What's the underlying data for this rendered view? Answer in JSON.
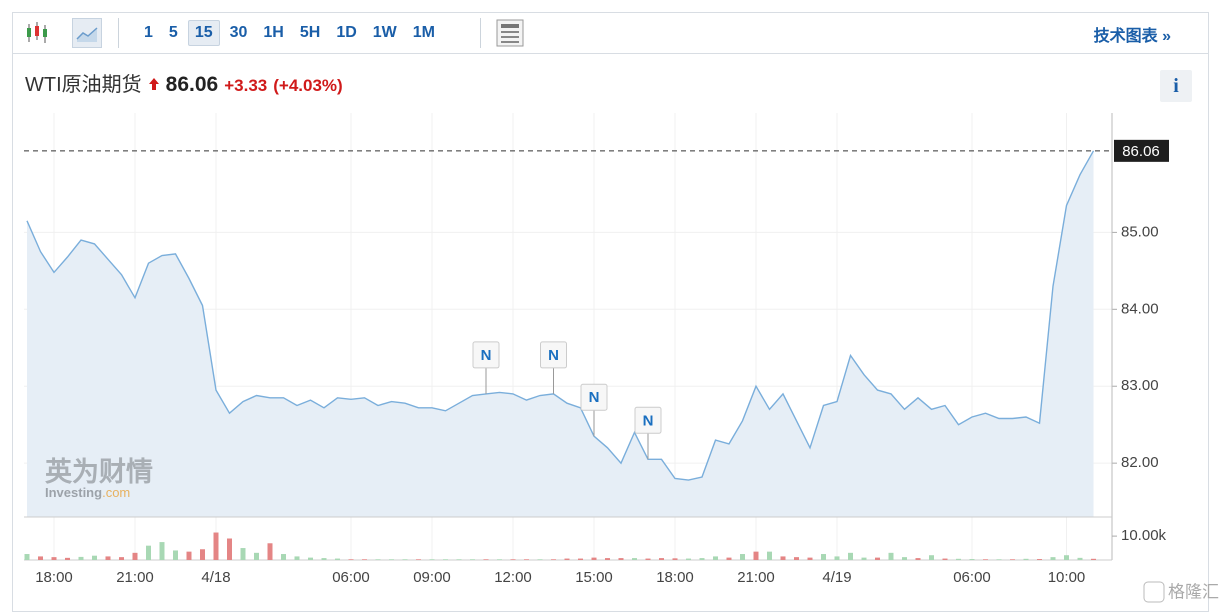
{
  "toolbar": {
    "intervals": [
      "1",
      "5",
      "15",
      "30",
      "1H",
      "5H",
      "1D",
      "1W",
      "1M"
    ],
    "tech_chart": "技术图表 »"
  },
  "header": {
    "name": "WTI原油期货",
    "price": "86.06",
    "change": "+3.33",
    "change_pct": "(+4.03%)",
    "info": "i"
  },
  "watermark": {
    "brand_cn": "英为财情",
    "brand_en": "Investing",
    "brand_suffix": ".com",
    "corner": "格隆汇"
  },
  "chart_data": {
    "type": "line",
    "categories": [
      null,
      null,
      "18:00",
      null,
      null,
      null,
      null,
      null,
      "21:00",
      null,
      null,
      null,
      null,
      null,
      "4/18",
      null,
      null,
      null,
      null,
      null,
      null,
      null,
      null,
      null,
      "06:00",
      null,
      null,
      null,
      null,
      null,
      "09:00",
      null,
      null,
      null,
      null,
      null,
      "12:00",
      null,
      null,
      null,
      null,
      null,
      "15:00",
      null,
      null,
      null,
      null,
      null,
      "18:00",
      null,
      null,
      null,
      null,
      null,
      "21:00",
      null,
      null,
      null,
      null,
      null,
      "4/19",
      null,
      null,
      null,
      null,
      null,
      null,
      null,
      null,
      null,
      "06:00",
      null,
      null,
      null,
      null,
      null,
      null,
      "10:00",
      null,
      null
    ],
    "series": [
      {
        "color": "#7aaedb",
        "fill": "#e6eef6",
        "values": [
          85.15,
          84.75,
          84.48,
          84.68,
          84.9,
          84.85,
          84.65,
          84.45,
          84.15,
          84.6,
          84.7,
          84.72,
          84.4,
          84.05,
          82.95,
          82.65,
          82.8,
          82.88,
          82.85,
          82.85,
          82.75,
          82.82,
          82.72,
          82.85,
          82.83,
          82.85,
          82.75,
          82.8,
          82.78,
          82.72,
          82.72,
          82.68,
          82.78,
          82.88,
          82.9,
          82.92,
          82.9,
          82.82,
          82.88,
          82.9,
          82.78,
          82.72,
          82.35,
          82.2,
          82.0,
          82.4,
          82.05,
          82.05,
          81.8,
          81.78,
          81.82,
          82.3,
          82.25,
          82.55,
          83.0,
          82.7,
          82.9,
          82.55,
          82.2,
          82.75,
          82.8,
          83.4,
          83.15,
          82.95,
          82.9,
          82.7,
          82.85,
          82.7,
          82.75,
          82.5,
          82.6,
          82.65,
          82.58,
          82.58,
          82.6,
          82.52,
          84.3,
          85.35,
          85.75,
          86.06
        ]
      }
    ],
    "ylim": [
      81.3,
      86.5
    ],
    "yticks": [
      {
        "value": 82,
        "label": "82.00"
      },
      {
        "value": 83,
        "label": "83.00"
      },
      {
        "value": 84,
        "label": "84.00"
      },
      {
        "value": 85,
        "label": "85.00"
      }
    ],
    "grid": true,
    "annotations": [
      {
        "text": "N",
        "at": 34
      },
      {
        "text": "N",
        "at": 39
      },
      {
        "text": "N",
        "at": 42
      },
      {
        "text": "N",
        "at": 46
      }
    ],
    "volume": {
      "ylim": [
        0,
        18000
      ],
      "yticks": [
        {
          "value": 10000,
          "label": "10.00k"
        }
      ],
      "values": [
        2500,
        1500,
        1200,
        900,
        1300,
        1800,
        1500,
        1200,
        3000,
        6000,
        7500,
        4000,
        3500,
        4500,
        11500,
        9000,
        5000,
        3000,
        7000,
        2500,
        1500,
        1000,
        800,
        600,
        300,
        300,
        300,
        300,
        300,
        300,
        300,
        300,
        300,
        300,
        300,
        300,
        300,
        300,
        300,
        300,
        600,
        600,
        1000,
        800,
        800,
        800,
        600,
        800,
        700,
        600,
        800,
        1500,
        1000,
        2500,
        3500,
        3500,
        1500,
        1200,
        1000,
        2500,
        1500,
        3000,
        1000,
        1000,
        3000,
        1200,
        800,
        2000,
        600,
        500,
        400,
        300,
        300,
        300,
        500,
        400,
        1200,
        2000,
        900,
        500
      ],
      "colors": [
        "#a8d8b4",
        "#e48585",
        "#e48585",
        "#e48585",
        "#a8d8b4",
        "#a8d8b4",
        "#e48585",
        "#e48585",
        "#e48585",
        "#a8d8b4",
        "#a8d8b4",
        "#a8d8b4",
        "#e48585",
        "#e48585",
        "#e48585",
        "#e48585",
        "#a8d8b4",
        "#a8d8b4",
        "#e48585",
        "#a8d8b4",
        "#a8d8b4",
        "#a8d8b4",
        "#a8d8b4",
        "#a8d8b4",
        "#e48585",
        "#e48585",
        "#a8d8b4",
        "#a8d8b4",
        "#a8d8b4",
        "#e48585",
        "#a8d8b4",
        "#a8d8b4",
        "#a8d8b4",
        "#a8d8b4",
        "#e48585",
        "#a8d8b4",
        "#e48585",
        "#e48585",
        "#a8d8b4",
        "#e48585",
        "#e48585",
        "#e48585",
        "#e48585",
        "#e48585",
        "#e48585",
        "#a8d8b4",
        "#e48585",
        "#e48585",
        "#e48585",
        "#a8d8b4",
        "#a8d8b4",
        "#a8d8b4",
        "#e48585",
        "#a8d8b4",
        "#e48585",
        "#a8d8b4",
        "#e48585",
        "#e48585",
        "#e48585",
        "#a8d8b4",
        "#a8d8b4",
        "#a8d8b4",
        "#a8d8b4",
        "#e48585",
        "#a8d8b4",
        "#a8d8b4",
        "#e48585",
        "#a8d8b4",
        "#e48585",
        "#a8d8b4",
        "#a8d8b4",
        "#e48585",
        "#a8d8b4",
        "#e48585",
        "#a8d8b4",
        "#e48585",
        "#a8d8b4",
        "#a8d8b4",
        "#a8d8b4",
        "#e48585"
      ]
    }
  }
}
